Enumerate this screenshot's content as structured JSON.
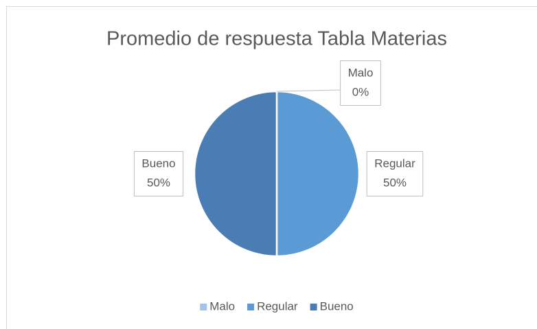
{
  "chart_data": {
    "type": "pie",
    "title": "Promedio de respuesta Tabla Materias",
    "categories": [
      "Malo",
      "Regular",
      "Bueno"
    ],
    "values": [
      0,
      50,
      50
    ],
    "value_labels": [
      "0%",
      "50%",
      "50%"
    ],
    "colors": [
      "#a5c3e8",
      "#5b9bd5",
      "#4a7db3"
    ],
    "legend": "bottom"
  }
}
